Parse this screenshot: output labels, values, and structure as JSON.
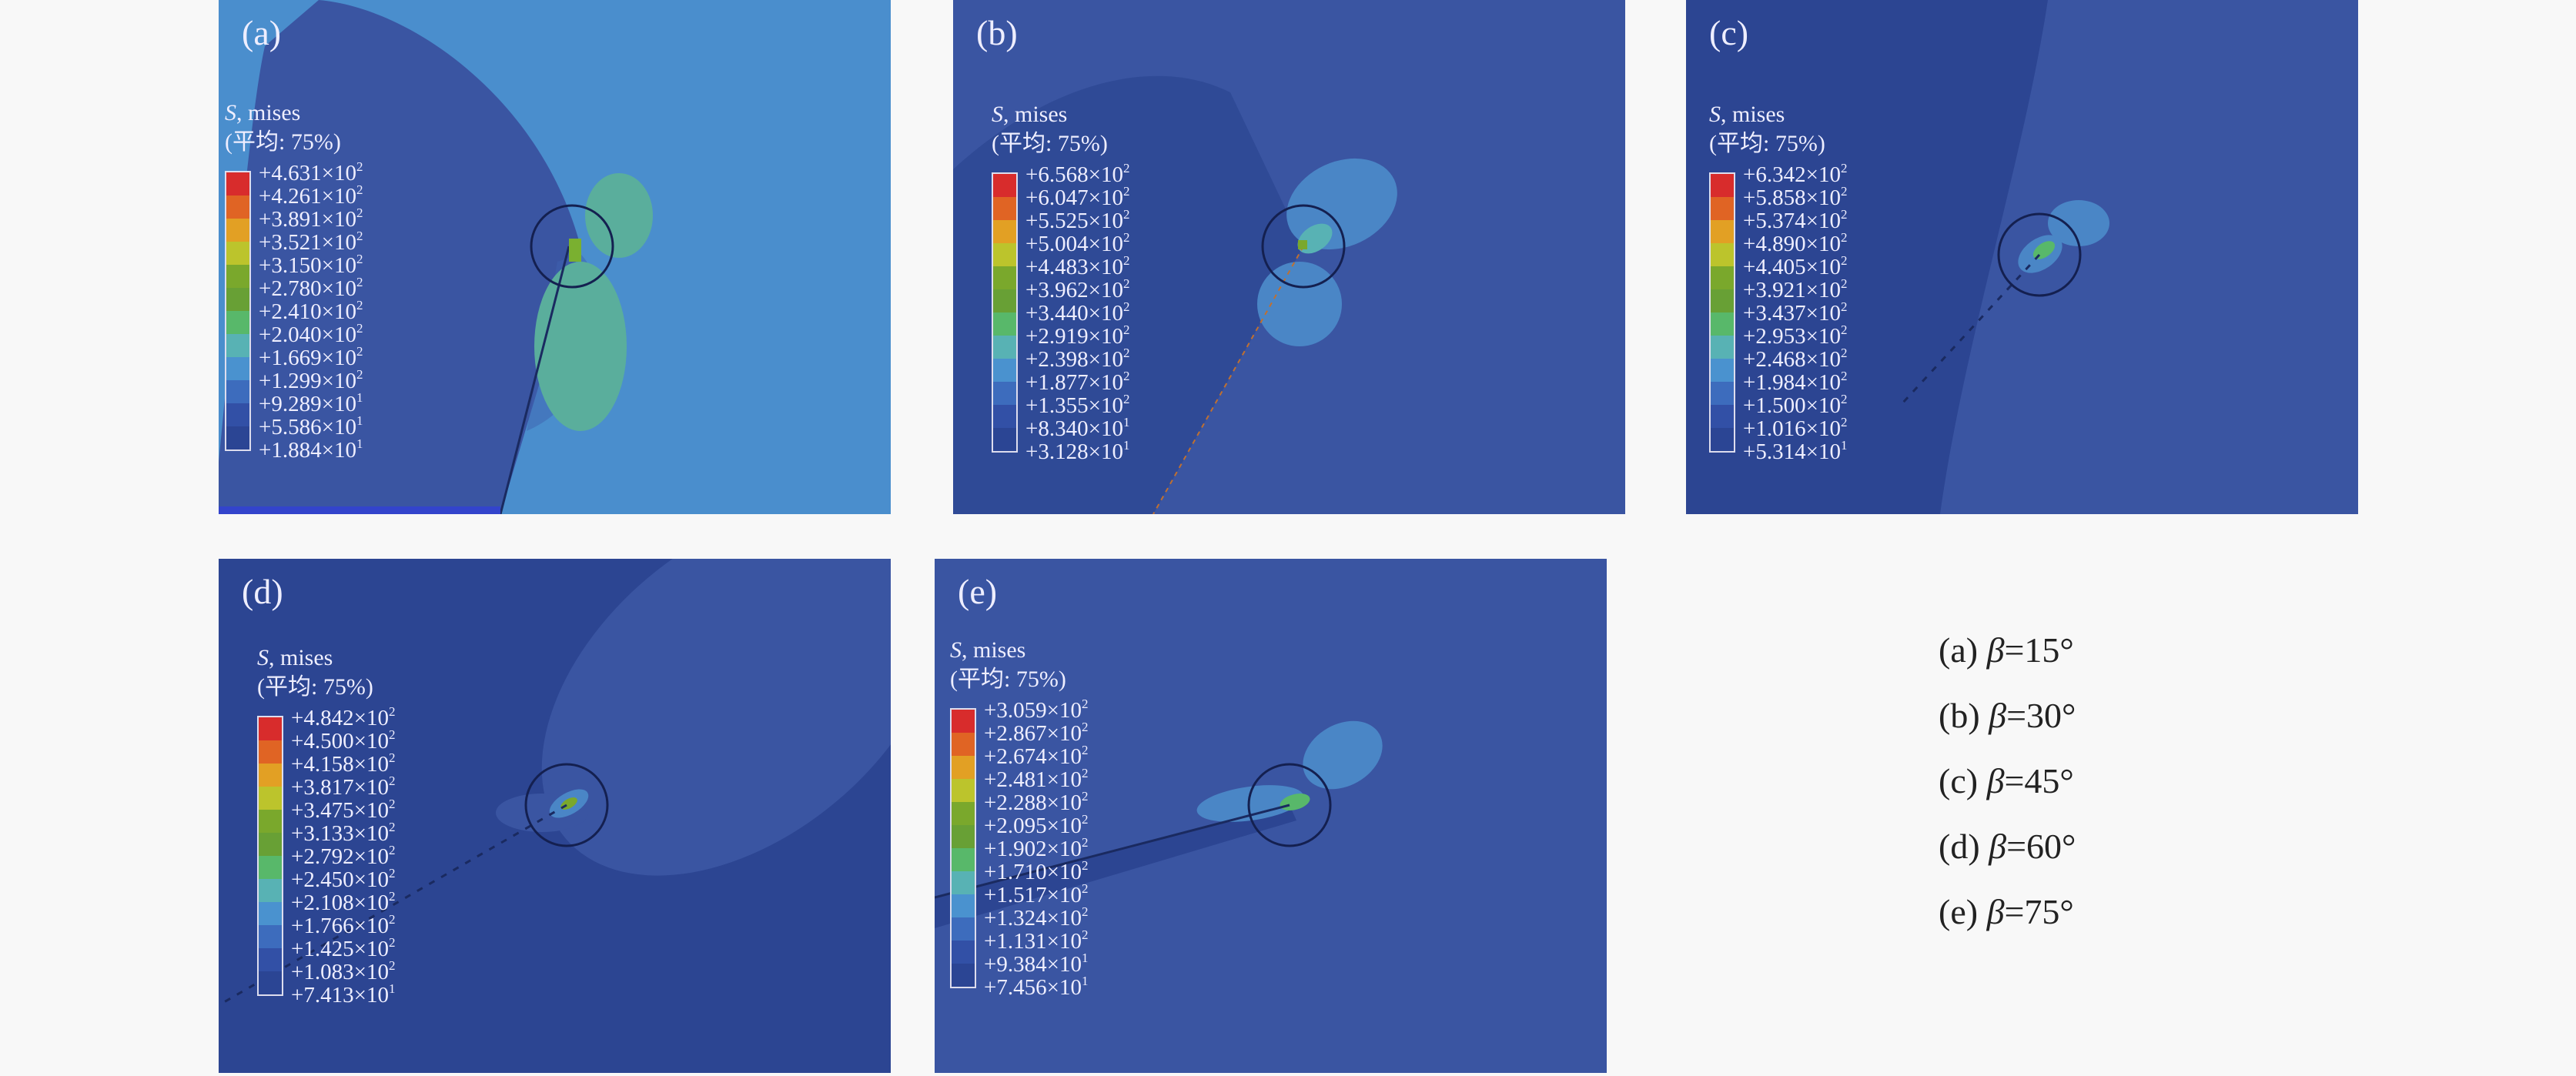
{
  "legend_title": "S, mises",
  "legend_subtitle": "(平均: 75%)",
  "band_colors": [
    "#2b4594",
    "#3250a6",
    "#3d6cbd",
    "#4a92cf",
    "#58b2b4",
    "#58b86a",
    "#68a035",
    "#7aa82c",
    "#bcc42c",
    "#e2a024",
    "#e06424",
    "#d82c2c"
  ],
  "panels": [
    {
      "label": "(a)",
      "values": [
        {
          "m": "+4.631",
          "e": "2"
        },
        {
          "m": "+4.261",
          "e": "2"
        },
        {
          "m": "+3.891",
          "e": "2"
        },
        {
          "m": "+3.521",
          "e": "2"
        },
        {
          "m": "+3.150",
          "e": "2"
        },
        {
          "m": "+2.780",
          "e": "2"
        },
        {
          "m": "+2.410",
          "e": "2"
        },
        {
          "m": "+2.040",
          "e": "2"
        },
        {
          "m": "+1.669",
          "e": "2"
        },
        {
          "m": "+1.299",
          "e": "2"
        },
        {
          "m": "+9.289",
          "e": "1"
        },
        {
          "m": "+5.586",
          "e": "1"
        },
        {
          "m": "+1.884",
          "e": "1"
        }
      ]
    },
    {
      "label": "(b)",
      "values": [
        {
          "m": "+6.568",
          "e": "2"
        },
        {
          "m": "+6.047",
          "e": "2"
        },
        {
          "m": "+5.525",
          "e": "2"
        },
        {
          "m": "+5.004",
          "e": "2"
        },
        {
          "m": "+4.483",
          "e": "2"
        },
        {
          "m": "+3.962",
          "e": "2"
        },
        {
          "m": "+3.440",
          "e": "2"
        },
        {
          "m": "+2.919",
          "e": "2"
        },
        {
          "m": "+2.398",
          "e": "2"
        },
        {
          "m": "+1.877",
          "e": "2"
        },
        {
          "m": "+1.355",
          "e": "2"
        },
        {
          "m": "+8.340",
          "e": "1"
        },
        {
          "m": "+3.128",
          "e": "1"
        }
      ]
    },
    {
      "label": "(c)",
      "values": [
        {
          "m": "+6.342",
          "e": "2"
        },
        {
          "m": "+5.858",
          "e": "2"
        },
        {
          "m": "+5.374",
          "e": "2"
        },
        {
          "m": "+4.890",
          "e": "2"
        },
        {
          "m": "+4.405",
          "e": "2"
        },
        {
          "m": "+3.921",
          "e": "2"
        },
        {
          "m": "+3.437",
          "e": "2"
        },
        {
          "m": "+2.953",
          "e": "2"
        },
        {
          "m": "+2.468",
          "e": "2"
        },
        {
          "m": "+1.984",
          "e": "2"
        },
        {
          "m": "+1.500",
          "e": "2"
        },
        {
          "m": "+1.016",
          "e": "2"
        },
        {
          "m": "+5.314",
          "e": "1"
        }
      ]
    },
    {
      "label": "(d)",
      "values": [
        {
          "m": "+4.842",
          "e": "2"
        },
        {
          "m": "+4.500",
          "e": "2"
        },
        {
          "m": "+4.158",
          "e": "2"
        },
        {
          "m": "+3.817",
          "e": "2"
        },
        {
          "m": "+3.475",
          "e": "2"
        },
        {
          "m": "+3.133",
          "e": "2"
        },
        {
          "m": "+2.792",
          "e": "2"
        },
        {
          "m": "+2.450",
          "e": "2"
        },
        {
          "m": "+2.108",
          "e": "2"
        },
        {
          "m": "+1.766",
          "e": "2"
        },
        {
          "m": "+1.425",
          "e": "2"
        },
        {
          "m": "+1.083",
          "e": "2"
        },
        {
          "m": "+7.413",
          "e": "1"
        }
      ]
    },
    {
      "label": "(e)",
      "values": [
        {
          "m": "+3.059",
          "e": "2"
        },
        {
          "m": "+2.867",
          "e": "2"
        },
        {
          "m": "+2.674",
          "e": "2"
        },
        {
          "m": "+2.481",
          "e": "2"
        },
        {
          "m": "+2.288",
          "e": "2"
        },
        {
          "m": "+2.095",
          "e": "2"
        },
        {
          "m": "+1.902",
          "e": "2"
        },
        {
          "m": "+1.710",
          "e": "2"
        },
        {
          "m": "+1.517",
          "e": "2"
        },
        {
          "m": "+1.324",
          "e": "2"
        },
        {
          "m": "+1.131",
          "e": "2"
        },
        {
          "m": "+9.384",
          "e": "1"
        },
        {
          "m": "+7.456",
          "e": "1"
        }
      ]
    }
  ],
  "captions": [
    {
      "label": "(a)",
      "symbol": "β",
      "value": "=15°"
    },
    {
      "label": "(b)",
      "symbol": "β",
      "value": "=30°"
    },
    {
      "label": "(c)",
      "symbol": "β",
      "value": "=45°"
    },
    {
      "label": "(d)",
      "symbol": "β",
      "value": "=60°"
    },
    {
      "label": "(e)",
      "symbol": "β",
      "value": "=75°"
    }
  ]
}
